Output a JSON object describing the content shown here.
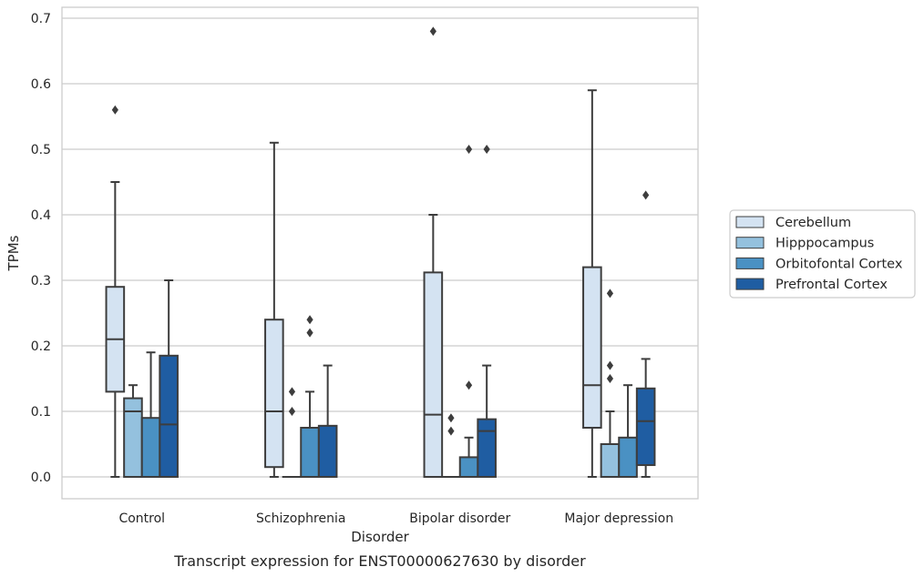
{
  "chart_data": {
    "type": "box",
    "title": "",
    "caption": "Transcript expression for ENST00000627630 by disorder",
    "xlabel": "Disorder",
    "ylabel": "TPMs",
    "ylim": [
      -0.033,
      0.71
    ],
    "yticks": [
      0.0,
      0.1,
      0.2,
      0.3,
      0.4,
      0.5,
      0.6,
      0.7
    ],
    "ytick_labels": [
      "0.0",
      "0.1",
      "0.2",
      "0.3",
      "0.4",
      "0.5",
      "0.6",
      "0.7"
    ],
    "grid": "horizontal",
    "legend_position": "right",
    "categories": [
      "Control",
      "Schizophrenia",
      "Bipolar disorder",
      "Major depression"
    ],
    "series": [
      {
        "name": "Cerebellum",
        "color": "#d4e3f2",
        "boxes": [
          {
            "min": 0.0,
            "q1": 0.13,
            "median": 0.21,
            "q3": 0.29,
            "max": 0.45,
            "outliers": [
              0.56
            ]
          },
          {
            "min": 0.0,
            "q1": 0.015,
            "median": 0.1,
            "q3": 0.24,
            "max": 0.51,
            "outliers": []
          },
          {
            "min": 0.0,
            "q1": 0.0,
            "median": 0.095,
            "q3": 0.312,
            "max": 0.4,
            "outliers": [
              0.68
            ]
          },
          {
            "min": 0.0,
            "q1": 0.075,
            "median": 0.14,
            "q3": 0.32,
            "max": 0.59,
            "outliers": []
          }
        ]
      },
      {
        "name": "Hipppocampus",
        "color": "#94c1de",
        "boxes": [
          {
            "min": 0.0,
            "q1": 0.0,
            "median": 0.1,
            "q3": 0.12,
            "max": 0.14,
            "outliers": []
          },
          {
            "min": 0.0,
            "q1": 0.0,
            "median": 0.0,
            "q3": 0.0,
            "max": 0.0,
            "outliers": [
              0.1,
              0.13
            ]
          },
          {
            "min": 0.0,
            "q1": 0.0,
            "median": 0.0,
            "q3": 0.0,
            "max": 0.0,
            "outliers": [
              0.07,
              0.09
            ]
          },
          {
            "min": 0.0,
            "q1": 0.0,
            "median": 0.0,
            "q3": 0.05,
            "max": 0.1,
            "outliers": [
              0.15,
              0.17,
              0.28
            ]
          }
        ]
      },
      {
        "name": "Orbitofontal Cortex",
        "color": "#4a91c3",
        "boxes": [
          {
            "min": 0.0,
            "q1": 0.0,
            "median": 0.0,
            "q3": 0.09,
            "max": 0.19,
            "outliers": []
          },
          {
            "min": 0.0,
            "q1": 0.0,
            "median": 0.0,
            "q3": 0.075,
            "max": 0.13,
            "outliers": [
              0.22,
              0.24
            ]
          },
          {
            "min": 0.0,
            "q1": 0.0,
            "median": 0.0,
            "q3": 0.03,
            "max": 0.06,
            "outliers": [
              0.14,
              0.5
            ]
          },
          {
            "min": 0.0,
            "q1": 0.0,
            "median": 0.0,
            "q3": 0.06,
            "max": 0.14,
            "outliers": []
          }
        ]
      },
      {
        "name": "Prefrontal Cortex",
        "color": "#1f5da2",
        "boxes": [
          {
            "min": 0.0,
            "q1": 0.0,
            "median": 0.08,
            "q3": 0.185,
            "max": 0.3,
            "outliers": []
          },
          {
            "min": 0.0,
            "q1": 0.0,
            "median": 0.0,
            "q3": 0.078,
            "max": 0.17,
            "outliers": []
          },
          {
            "min": 0.0,
            "q1": 0.0,
            "median": 0.07,
            "q3": 0.088,
            "max": 0.17,
            "outliers": [
              0.5
            ]
          },
          {
            "min": 0.0,
            "q1": 0.018,
            "median": 0.085,
            "q3": 0.135,
            "max": 0.18,
            "outliers": [
              0.43
            ]
          }
        ]
      }
    ]
  }
}
